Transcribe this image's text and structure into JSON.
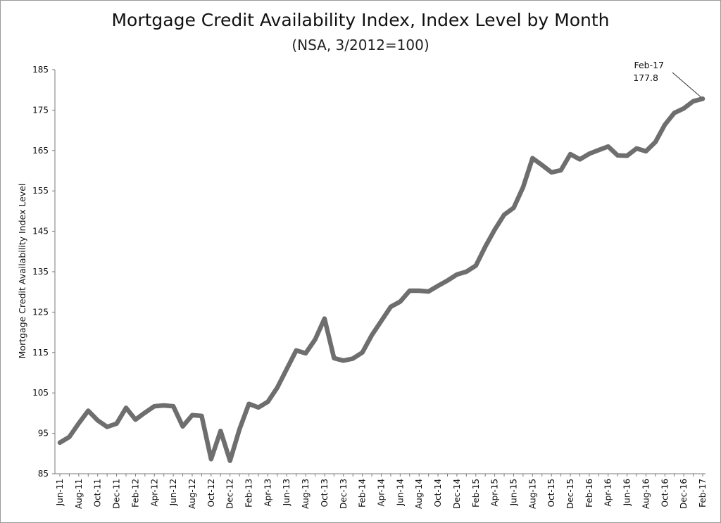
{
  "chart_data": {
    "type": "line",
    "title": "Mortgage Credit Availability Index, Index Level by Month",
    "subtitle": "(NSA, 3/2012=100)",
    "xlabel": "",
    "ylabel": "Mortgage Credit Availability Index Level",
    "ylim": [
      85,
      185
    ],
    "yticks": [
      85,
      95,
      105,
      115,
      125,
      135,
      145,
      155,
      165,
      175,
      185
    ],
    "grid": false,
    "legend": "none",
    "line_color": "#6e6e6e",
    "x": [
      "Jun-11",
      "Jul-11",
      "Aug-11",
      "Sep-11",
      "Oct-11",
      "Nov-11",
      "Dec-11",
      "Jan-12",
      "Feb-12",
      "Mar-12",
      "Apr-12",
      "May-12",
      "Jun-12",
      "Jul-12",
      "Aug-12",
      "Sep-12",
      "Oct-12",
      "Nov-12",
      "Dec-12",
      "Jan-13",
      "Feb-13",
      "Mar-13",
      "Apr-13",
      "May-13",
      "Jun-13",
      "Jul-13",
      "Aug-13",
      "Sep-13",
      "Oct-13",
      "Nov-13",
      "Dec-13",
      "Jan-14",
      "Feb-14",
      "Mar-14",
      "Apr-14",
      "May-14",
      "Jun-14",
      "Jul-14",
      "Aug-14",
      "Sep-14",
      "Oct-14",
      "Nov-14",
      "Dec-14",
      "Jan-15",
      "Feb-15",
      "Mar-15",
      "Apr-15",
      "May-15",
      "Jun-15",
      "Jul-15",
      "Aug-15",
      "Sep-15",
      "Oct-15",
      "Nov-15",
      "Dec-15",
      "Jan-16",
      "Feb-16",
      "Mar-16",
      "Apr-16",
      "May-16",
      "Jun-16",
      "Jul-16",
      "Aug-16",
      "Sep-16",
      "Oct-16",
      "Nov-16",
      "Dec-16",
      "Jan-17",
      "Feb-17"
    ],
    "x_tick_labels": [
      "Jun-11",
      "Aug-11",
      "Oct-11",
      "Dec-11",
      "Feb-12",
      "Apr-12",
      "Jun-12",
      "Aug-12",
      "Oct-12",
      "Dec-12",
      "Feb-13",
      "Apr-13",
      "Jun-13",
      "Aug-13",
      "Oct-13",
      "Dec-13",
      "Feb-14",
      "Apr-14",
      "Jun-14",
      "Aug-14",
      "Oct-14",
      "Dec-14",
      "Feb-15",
      "Apr-15",
      "Jun-15",
      "Aug-15",
      "Oct-15",
      "Dec-15",
      "Feb-16",
      "Apr-16",
      "Jun-16",
      "Aug-16",
      "Oct-16",
      "Dec-16",
      "Feb-17"
    ],
    "series": [
      {
        "values": [
          92.7,
          94.1,
          97.5,
          100.6,
          98.2,
          96.6,
          97.4,
          101.3,
          98.4,
          100.1,
          101.7,
          101.9,
          101.7,
          96.7,
          99.5,
          99.3,
          88.6,
          95.6,
          88.2,
          96.0,
          102.3,
          101.4,
          102.8,
          106.3,
          110.9,
          115.5,
          114.8,
          118.2,
          123.4,
          113.6,
          113.0,
          113.5,
          115.0,
          119.3,
          122.8,
          126.3,
          127.6,
          130.3,
          130.3,
          130.1,
          131.5,
          132.8,
          134.3,
          135.0,
          136.5,
          141.2,
          145.4,
          149.1,
          150.8,
          155.9,
          163.1,
          161.4,
          159.6,
          160.1,
          164.1,
          162.8,
          164.2,
          165.1,
          166.0,
          163.8,
          163.7,
          165.5,
          164.8,
          167.1,
          171.4,
          174.3,
          175.4,
          177.2,
          177.8
        ]
      }
    ],
    "annotation": {
      "label": "Feb-17",
      "value": "177.8"
    }
  }
}
